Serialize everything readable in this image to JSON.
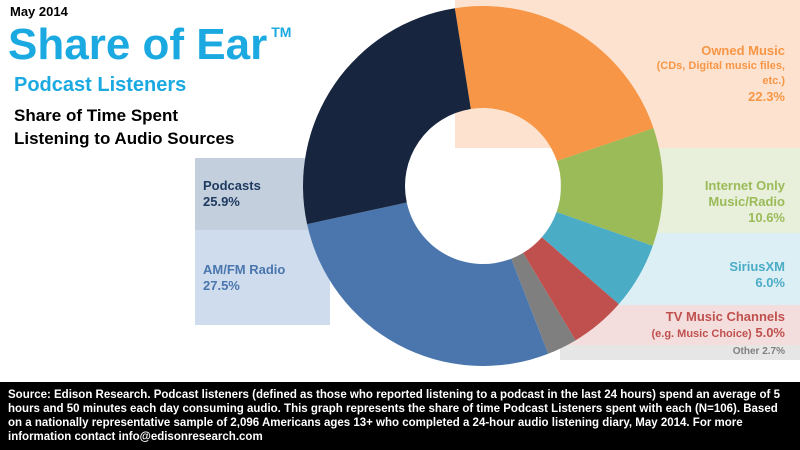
{
  "header": {
    "date": "May 2014",
    "title": "Share of Ear",
    "trademark": "TM",
    "subtitle": "Podcast Listeners",
    "description": "Share of Time Spent Listening to Audio Sources"
  },
  "chart_data": {
    "type": "donut",
    "categories": [
      "Owned Music",
      "Internet Only Music/Radio",
      "SiriusXM",
      "TV Music Channels",
      "Other",
      "AM/FM Radio",
      "Podcasts"
    ],
    "notes": [
      "(CDs, Digital music files, etc.)",
      null,
      null,
      "(e.g. Music Choice)",
      null,
      null,
      null
    ],
    "values": [
      22.3,
      10.6,
      6.0,
      5.0,
      2.7,
      27.5,
      25.9
    ],
    "value_labels": [
      "22.3%",
      "10.6%",
      "6.0%",
      "5.0%",
      "2.7%",
      "27.5%",
      "25.9%"
    ],
    "colors": [
      "#f79646",
      "#9bbb59",
      "#4bacc6",
      "#c0504d",
      "#7f7f7f",
      "#4a76ad",
      "#17253f"
    ]
  },
  "footer": {
    "source": "Source: Edison Research.  Podcast listeners (defined as those who reported listening to a podcast in the last 24 hours) spend an average of 5 hours and 50 minutes each day consuming audio.  This graph represents the share of time Podcast Listeners spent with each (N=106). Based on a nationally representative sample of 2,096 Americans ages 13+ who completed a 24-hour audio listening diary, May 2014.  For more information contact info@edisonresearch.com"
  }
}
